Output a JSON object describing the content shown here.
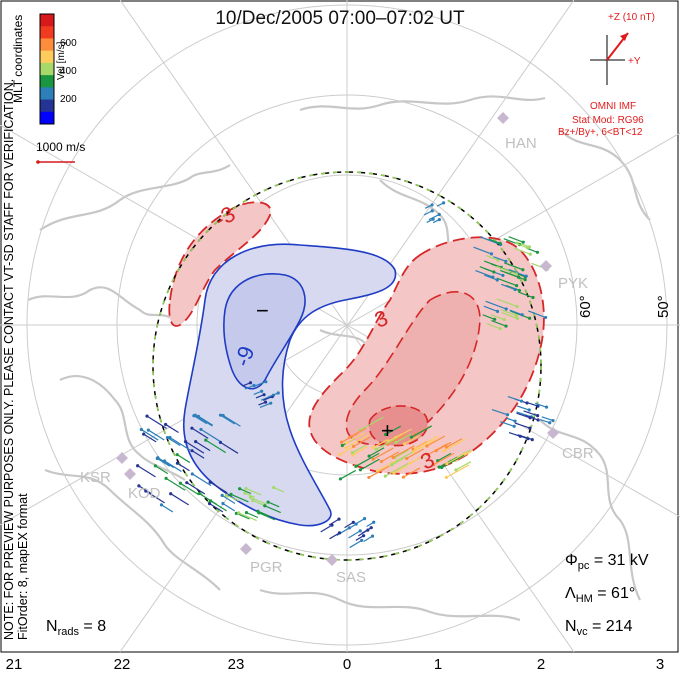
{
  "title": "10/Dec/2005 07:00–07:02 UT",
  "side_note": {
    "line1": "NOTE: FOR PREVIEW PURPOSES ONLY. PLEASE CONTACT VT-SD STAFF FOR VERIFICATION.",
    "line2": "FitOrder: 8, mapEX format"
  },
  "legend": {
    "title": "Vel [m/s]",
    "coords": "MLT coordinates",
    "ticks": [
      "600",
      "400",
      "200"
    ],
    "colors": [
      "#d7191c",
      "#f03b20",
      "#fd8d3c",
      "#fecc5c",
      "#a6d96a",
      "#1a9641",
      "#2c7fb8",
      "#253494",
      "#0000ff"
    ],
    "scale_label": "1000 m/s"
  },
  "imf": {
    "bz_label": "+Z (10 nT)",
    "by_label": "+Y",
    "source": "OMNI IMF",
    "stat_mod": "Stat Mod: RG96",
    "condition": "Bz+/By+, 6<BT<12"
  },
  "lat_labels": [
    "60°",
    "50°"
  ],
  "stations": [
    "HAN",
    "PYK",
    "CBR",
    "KSR",
    "KOD",
    "PGR",
    "SAS"
  ],
  "contour_labels": [
    "-3",
    "-9",
    "3",
    "3",
    "3",
    "−",
    "+"
  ],
  "stats": {
    "phi_pc_symbol": "Φ",
    "phi_pc_sub": "pc",
    "phi_pc_value": "= 31 kV",
    "lambda_symbol": "Λ",
    "lambda_sub": "HM",
    "lambda_value": "= 61°",
    "nvc_symbol": "N",
    "nvc_sub": "vc",
    "nvc_value": "= 214",
    "nrads_symbol": "N",
    "nrads_sub": "rads",
    "nrads_value": "= 8"
  },
  "mlt_labels": [
    "21",
    "22",
    "23",
    "0",
    "1",
    "2",
    "3"
  ],
  "colors": {
    "positive_fill": "#f4c6c6",
    "negative_fill": "#d7d9f0",
    "positive_line": "#d62728",
    "negative_line": "#1f3cc4",
    "coast": "#c7c7c7",
    "grid": "#cccccc",
    "imf": "#e31a1c"
  }
}
